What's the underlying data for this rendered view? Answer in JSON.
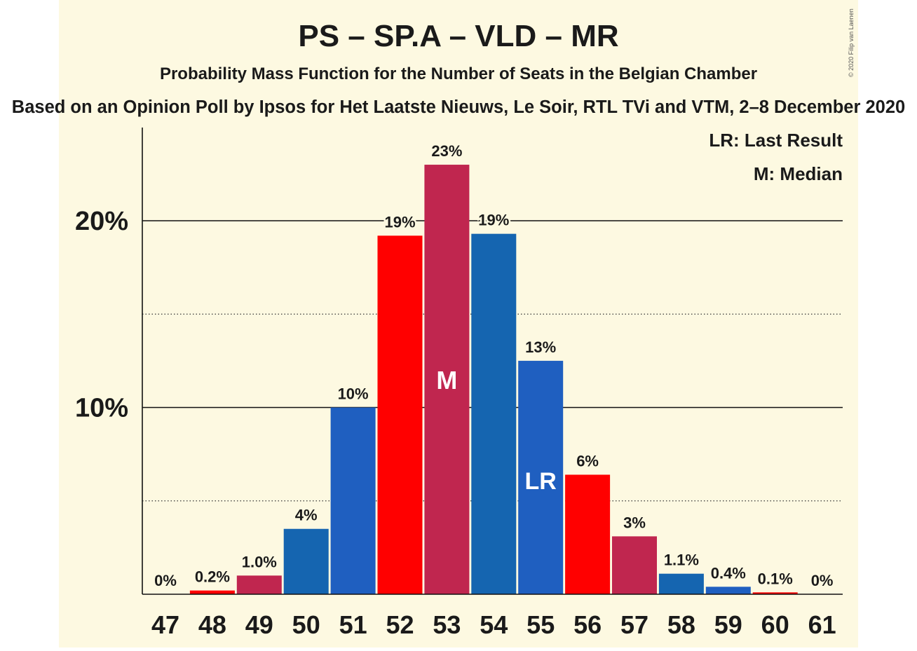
{
  "title": "PS – SP.A – VLD – MR",
  "subtitle": "Probability Mass Function for the Number of Seats in the Belgian Chamber",
  "source_line": "Based on an Opinion Poll by Ipsos for Het Laatste Nieuws, Le Soir, RTL TVi and VTM, 2–8 December 2020",
  "copyright": "© 2020 Filip van Laenen",
  "legend": {
    "last_result": "LR: Last Result",
    "median": "M: Median"
  },
  "colors": {
    "background": "#fdf9e1",
    "ps_red": "#ff0000",
    "spa_crimson": "#c0264f",
    "vld_blue": "#1565b0",
    "mr_blue": "#1f5fc0"
  },
  "chart_data": {
    "type": "bar",
    "categories": [
      "47",
      "48",
      "49",
      "50",
      "51",
      "52",
      "53",
      "54",
      "55",
      "56",
      "57",
      "58",
      "59",
      "60",
      "61"
    ],
    "values": [
      0,
      0.2,
      1.0,
      3.5,
      10.0,
      19.2,
      23.0,
      19.3,
      12.5,
      6.4,
      3.1,
      1.1,
      0.4,
      0.1,
      0
    ],
    "labels": [
      "0%",
      "0.2%",
      "1.0%",
      "4%",
      "10%",
      "19%",
      "23%",
      "19%",
      "13%",
      "6%",
      "3%",
      "1.1%",
      "0.4%",
      "0.1%",
      "0%"
    ],
    "bar_colors": [
      "#c0264f",
      "#ff0000",
      "#c0264f",
      "#1565b0",
      "#1f5fc0",
      "#ff0000",
      "#c0264f",
      "#1565b0",
      "#1f5fc0",
      "#ff0000",
      "#c0264f",
      "#1565b0",
      "#1f5fc0",
      "#ff0000",
      "#c0264f"
    ],
    "ylim": [
      0,
      25
    ],
    "yticks": [
      {
        "value": 10,
        "label": "10%"
      },
      {
        "value": 20,
        "label": "20%"
      }
    ],
    "minor_gridlines": [
      5,
      15
    ],
    "median_category": "53",
    "median_marker": "M",
    "last_result_category": "55",
    "last_result_marker": "LR",
    "xlabel": "",
    "ylabel": ""
  }
}
